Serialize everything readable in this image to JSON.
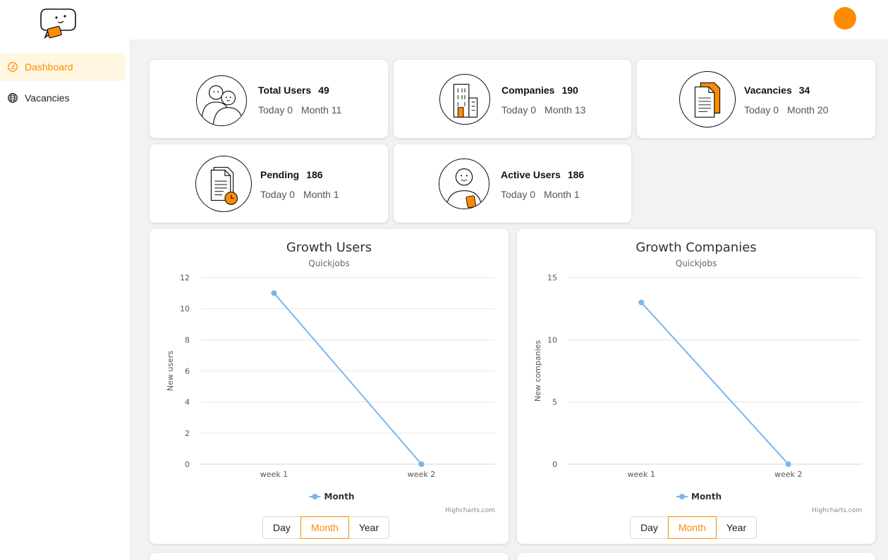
{
  "sidebar": {
    "items": [
      {
        "label": "Dashboard",
        "icon": "dashboard-icon",
        "active": true
      },
      {
        "label": "Vacancies",
        "icon": "globe-icon",
        "active": false
      }
    ]
  },
  "colors": {
    "accent": "#ff8c00",
    "series": "#7cb5ec"
  },
  "stats": [
    {
      "title": "Total Users",
      "value": "49",
      "today": "Today 0",
      "month": "Month 11",
      "icon": "users-icon"
    },
    {
      "title": "Companies",
      "value": "190",
      "today": "Today 0",
      "month": "Month 13",
      "icon": "building-icon"
    },
    {
      "title": "Vacancies",
      "value": "34",
      "today": "Today 0",
      "month": "Month 20",
      "icon": "documents-icon"
    },
    {
      "title": "Pending",
      "value": "186",
      "today": "Today 0",
      "month": "Month 1",
      "icon": "pending-document-icon"
    },
    {
      "title": "Active Users",
      "value": "186",
      "today": "Today 0",
      "month": "Month 1",
      "icon": "active-user-icon"
    }
  ],
  "chart_buttons": [
    "Day",
    "Month",
    "Year"
  ],
  "chart_data": [
    {
      "type": "line",
      "title": "Growth Users",
      "subtitle": "Quickjobs",
      "ylabel": "New users",
      "categories": [
        "week 1",
        "week 2"
      ],
      "series": [
        {
          "name": "Month",
          "values": [
            11,
            0
          ]
        }
      ],
      "ylim": [
        0,
        12
      ],
      "yticks": [
        0,
        2,
        4,
        6,
        8,
        10,
        12
      ],
      "legend": "bottom-center",
      "grid": true,
      "credits": "Highcharts.com",
      "selected_range": "Month"
    },
    {
      "type": "line",
      "title": "Growth Companies",
      "subtitle": "Quickjobs",
      "ylabel": "New companies",
      "categories": [
        "week 1",
        "week 2"
      ],
      "series": [
        {
          "name": "Month",
          "values": [
            13,
            0
          ]
        }
      ],
      "ylim": [
        0,
        15
      ],
      "yticks": [
        0,
        5,
        10,
        15
      ],
      "legend": "bottom-center",
      "grid": true,
      "credits": "Highcharts.com",
      "selected_range": "Month"
    }
  ]
}
